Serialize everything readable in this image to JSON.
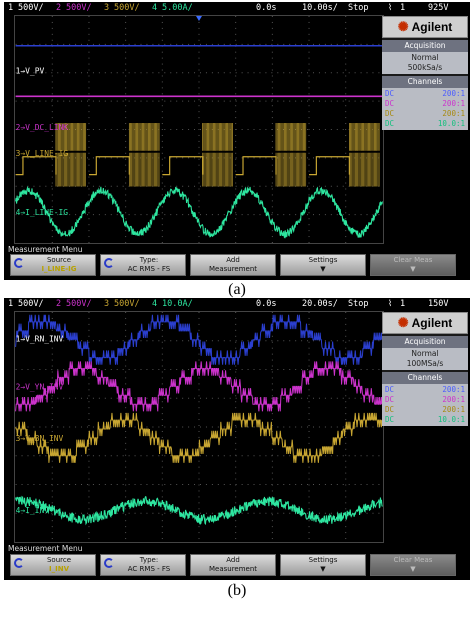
{
  "scope_a": {
    "status": {
      "ch1_num": "1",
      "ch1_scale": "500V/",
      "ch2_num": "2",
      "ch2_scale": "500V/",
      "ch3_num": "3",
      "ch3_scale": "500V/",
      "ch4_num": "4",
      "ch4_scale": "5.00A/",
      "delay": "0.0s",
      "timebase": "10.00s/",
      "run_state": "Stop",
      "trig_num": "1",
      "trig_level": "925V"
    },
    "traces": [
      {
        "label": "V_PV",
        "color": "#2b3fcf"
      },
      {
        "label": "V_DC_LINK",
        "color": "#cc33cc"
      },
      {
        "label": "V_LINE-IG",
        "color": "#c8a632"
      },
      {
        "label": "I_LINE-IG",
        "color": "#2ee6a0"
      }
    ],
    "panel": {
      "brand": "Agilent",
      "acq_header": "Acquisition",
      "acq_mode": "Normal",
      "acq_rate": "500kSa/s",
      "ch_header": "Channels",
      "channels": [
        {
          "coupling": "DC",
          "ratio": "200:1",
          "color": "#4a5cff"
        },
        {
          "coupling": "DC",
          "ratio": "200:1",
          "color": "#cc33cc"
        },
        {
          "coupling": "DC",
          "ratio": "200:1",
          "color": "#a88a10"
        },
        {
          "coupling": "DC",
          "ratio": "10.0:1",
          "color": "#14c07e"
        }
      ]
    },
    "menu_title": "Measurement Menu",
    "softkeys": {
      "source_label": "Source",
      "source_value": "I_LINE-IG",
      "type_label": "Type:",
      "type_value": "AC RMS - FS",
      "add_label": "Add",
      "add_value": "Measurement",
      "settings_label": "Settings",
      "clear_label": "Clear Meas"
    }
  },
  "scope_b": {
    "status": {
      "ch1_num": "1",
      "ch1_scale": "500V/",
      "ch2_num": "2",
      "ch2_scale": "500V/",
      "ch3_num": "3",
      "ch3_scale": "500V/",
      "ch4_num": "4",
      "ch4_scale": "10.0A/",
      "delay": "0.0s",
      "timebase": "20.00s/",
      "run_state": "Stop",
      "trig_num": "1",
      "trig_level": "150V"
    },
    "traces": [
      {
        "label": "V_RN_INV",
        "color": "#2b3fcf"
      },
      {
        "label": "V_YN_INV",
        "color": "#cc33cc"
      },
      {
        "label": "V_BN_INV",
        "color": "#c8a632"
      },
      {
        "label": "I_INV",
        "color": "#2ee6a0"
      }
    ],
    "panel": {
      "brand": "Agilent",
      "acq_header": "Acquisition",
      "acq_mode": "Normal",
      "acq_rate": "100MSa/s",
      "ch_header": "Channels",
      "channels": [
        {
          "coupling": "DC",
          "ratio": "200:1",
          "color": "#4a5cff"
        },
        {
          "coupling": "DC",
          "ratio": "200:1",
          "color": "#cc33cc"
        },
        {
          "coupling": "DC",
          "ratio": "200:1",
          "color": "#a88a10"
        },
        {
          "coupling": "DC",
          "ratio": "10.0:1",
          "color": "#14c07e"
        }
      ]
    },
    "menu_title": "Measurement Menu",
    "softkeys": {
      "source_label": "Source",
      "source_value": "I_INV",
      "type_label": "Type:",
      "type_value": "AC RMS - FS",
      "add_label": "Add",
      "add_value": "Measurement",
      "settings_label": "Settings",
      "clear_label": "Clear Meas"
    }
  },
  "captions": {
    "a": "(a)",
    "b": "(b)"
  }
}
